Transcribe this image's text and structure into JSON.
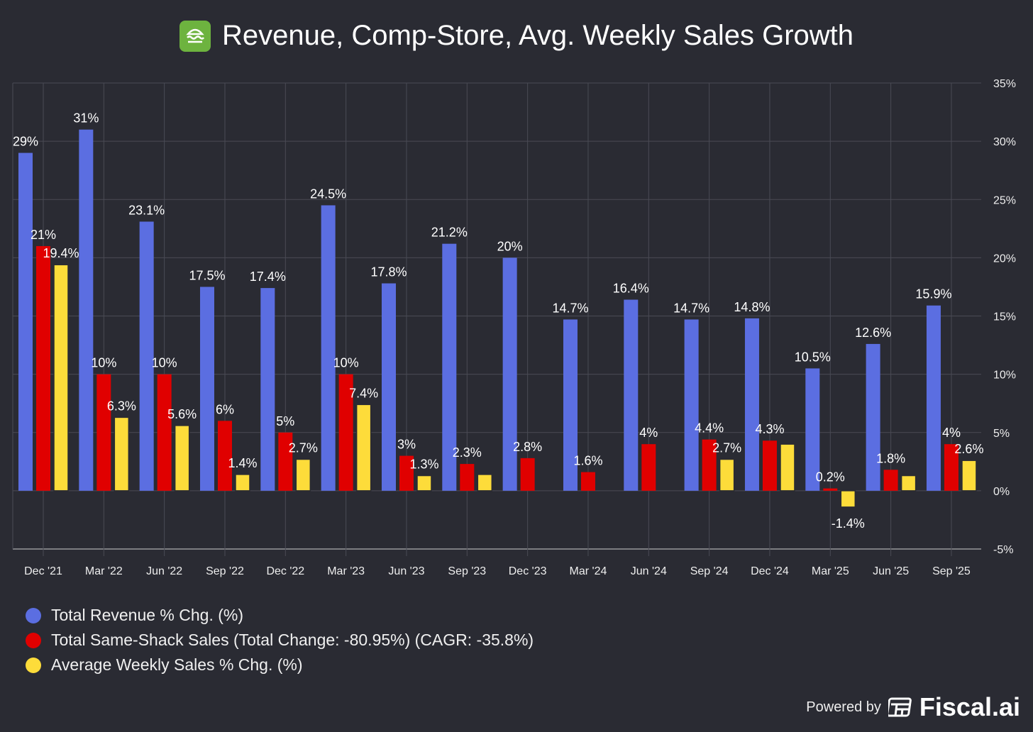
{
  "title": "Revenue, Comp-Store, Avg. Weekly Sales Growth",
  "logo_icon": "burger-icon",
  "footer": {
    "powered_by": "Powered by",
    "brand": "Fiscal.ai"
  },
  "chart_data": {
    "type": "bar",
    "title": "Revenue, Comp-Store, Avg. Weekly Sales Growth",
    "categories": [
      "Dec '21",
      "Mar '22",
      "Jun '22",
      "Sep '22",
      "Dec '22",
      "Mar '23",
      "Jun '23",
      "Sep '23",
      "Dec '23",
      "Mar '24",
      "Jun '24",
      "Sep '24",
      "Dec '24",
      "Mar '25",
      "Jun '25",
      "Sep '25"
    ],
    "ylim": [
      -5,
      35
    ],
    "yticks": [
      -5,
      0,
      5,
      10,
      15,
      20,
      25,
      30,
      35
    ],
    "ytick_labels": [
      "-5%",
      "0%",
      "5%",
      "10%",
      "15%",
      "20%",
      "25%",
      "30%",
      "35%"
    ],
    "grid": true,
    "legend_position": "bottom-left",
    "series": [
      {
        "name": "Total Revenue % Chg. (%)",
        "color": "#5b6ee1",
        "values": [
          29,
          31,
          23.1,
          17.5,
          17.4,
          24.5,
          17.8,
          21.2,
          20,
          14.7,
          16.4,
          14.7,
          14.8,
          10.5,
          12.6,
          15.9
        ],
        "labels": [
          "29%",
          "31%",
          "23.1%",
          "17.5%",
          "17.4%",
          "24.5%",
          "17.8%",
          "21.2%",
          "20%",
          "14.7%",
          "16.4%",
          "14.7%",
          "14.8%",
          "10.5%",
          "12.6%",
          "15.9%"
        ]
      },
      {
        "name": "Total Same-Shack Sales (Total Change: -80.95%) (CAGR: -35.8%)",
        "color": "#e00000",
        "values": [
          21,
          10,
          10,
          6,
          5,
          10,
          3,
          2.3,
          2.8,
          1.6,
          4,
          4.4,
          4.3,
          0.2,
          1.8,
          4
        ],
        "labels": [
          "21%",
          "10%",
          "10%",
          "6%",
          "5%",
          "10%",
          "3%",
          "2.3%",
          "2.8%",
          "1.6%",
          "4%",
          "4.4%",
          "4.3%",
          "0.2%",
          "1.8%",
          "4%"
        ]
      },
      {
        "name": "Average Weekly Sales % Chg. (%)",
        "color": "#fddc3a",
        "values": [
          19.4,
          6.3,
          5.6,
          1.4,
          2.7,
          7.4,
          1.3,
          1.4,
          null,
          null,
          null,
          2.7,
          4.0,
          -1.4,
          1.3,
          2.6
        ],
        "labels": [
          "19.4%",
          "6.3%",
          "5.6%",
          "1.4%",
          "2.7%",
          "7.4%",
          "1.3%",
          "",
          "",
          "",
          "",
          "2.7%",
          "",
          "-1.4%",
          "",
          "2.6%"
        ]
      }
    ]
  }
}
